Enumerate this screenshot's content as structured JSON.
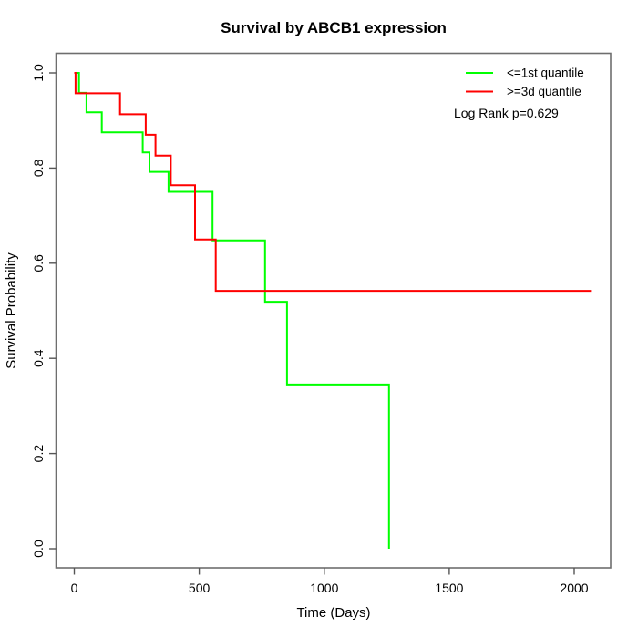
{
  "chart_data": {
    "type": "line",
    "subtype": "kaplan-meier-step",
    "title": "Survival by ABCB1 expression",
    "xlabel": "Time (Days)",
    "ylabel": "Survival Probability",
    "xlim": [
      -73,
      2146
    ],
    "ylim": [
      -0.04,
      1.04
    ],
    "x_ticks": [
      0,
      500,
      1000,
      1500,
      2000
    ],
    "x_tick_labels": [
      "0",
      "500",
      "1000",
      "1500",
      "2000"
    ],
    "y_ticks": [
      0.0,
      0.2,
      0.4,
      0.6,
      0.8,
      1.0
    ],
    "y_tick_labels": [
      "0.0",
      "0.2",
      "0.4",
      "0.6",
      "0.8",
      "1.0"
    ],
    "grid": false,
    "legend_position": "topright",
    "annotation": "Log Rank p=0.629",
    "log_rank_p": 0.629,
    "series": [
      {
        "name": "<=1st quantile",
        "color": "#00ff00",
        "events": [
          [
            0,
            1.0
          ],
          [
            19,
            0.958
          ],
          [
            49,
            0.917
          ],
          [
            110,
            0.875
          ],
          [
            274,
            0.833
          ],
          [
            301,
            0.792
          ],
          [
            377,
            0.75
          ],
          [
            553,
            0.648
          ],
          [
            763,
            0.519
          ],
          [
            851,
            0.345
          ],
          [
            1259,
            0.0
          ]
        ],
        "end_time": 1259
      },
      {
        "name": ">=3d quantile",
        "color": "#ff0000",
        "events": [
          [
            0,
            1.0
          ],
          [
            5,
            0.957
          ],
          [
            183,
            0.913
          ],
          [
            286,
            0.87
          ],
          [
            325,
            0.826
          ],
          [
            386,
            0.764
          ],
          [
            483,
            0.65
          ],
          [
            566,
            0.542
          ]
        ],
        "end_time": 2067
      }
    ]
  }
}
